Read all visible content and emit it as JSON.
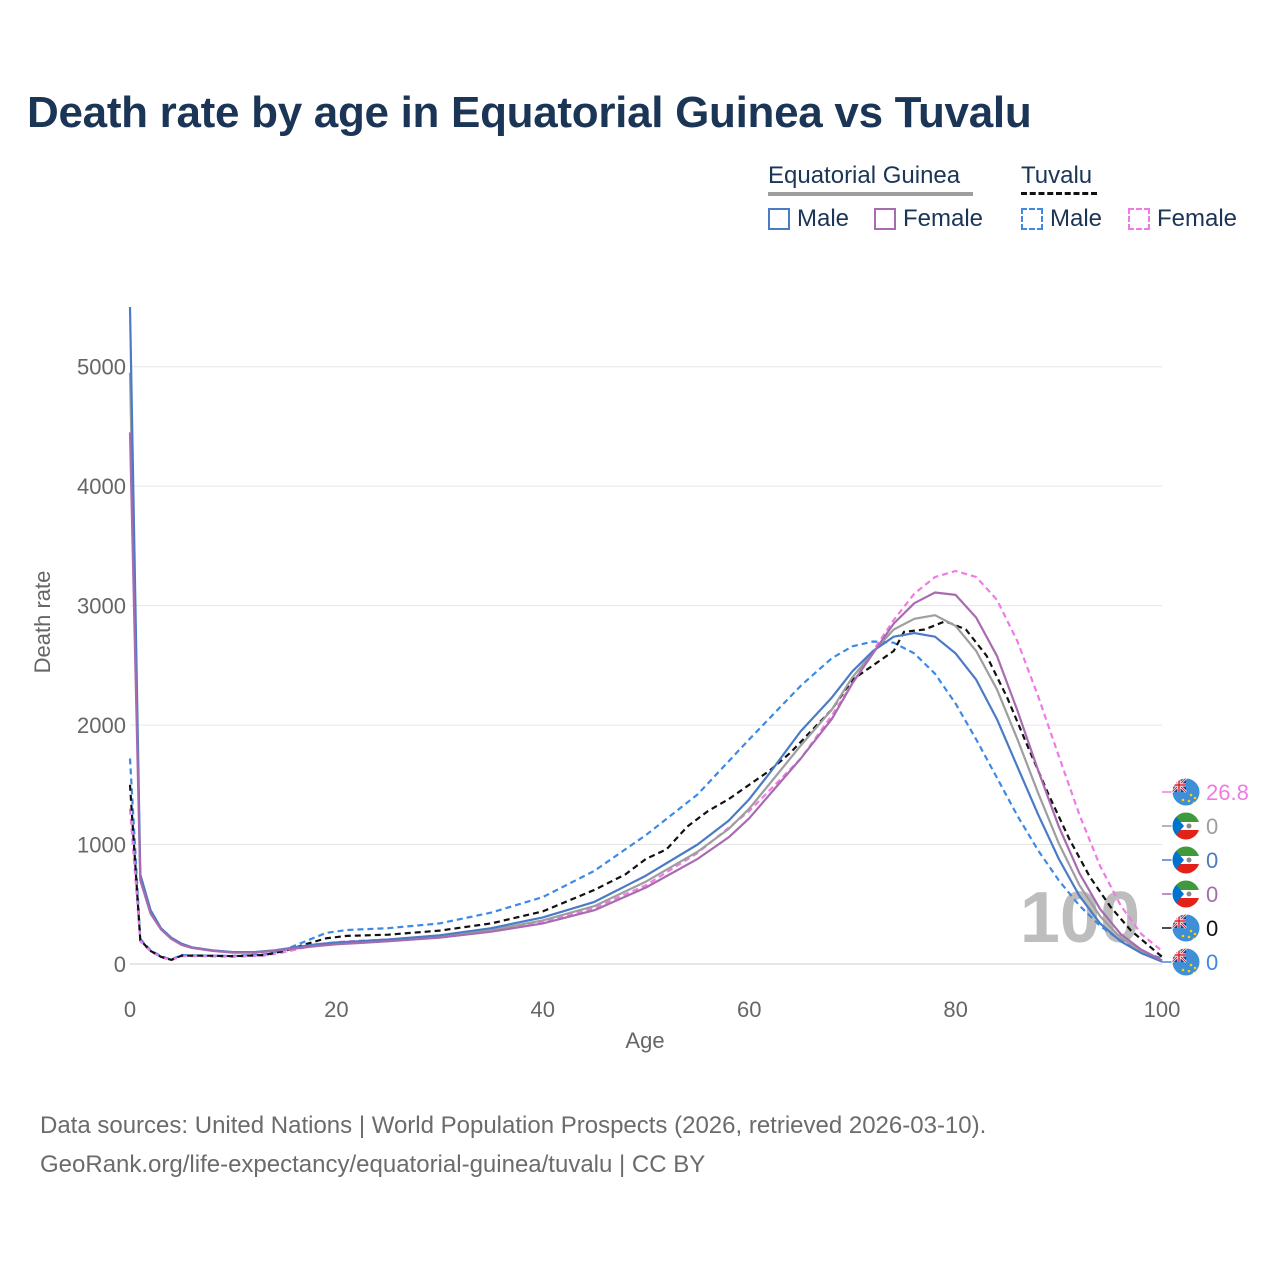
{
  "title": "Death rate by age in Equatorial Guinea vs Tuvalu",
  "legend": {
    "groups": [
      {
        "name": "Equatorial Guinea",
        "line_color": "#9e9e9e",
        "line_style": "solid",
        "items": [
          {
            "label": "Male",
            "color": "#4a7bc4",
            "style": "solid"
          },
          {
            "label": "Female",
            "color": "#a86bb0",
            "style": "solid"
          }
        ]
      },
      {
        "name": "Tuvalu",
        "line_color": "#111111",
        "line_style": "dashed",
        "items": [
          {
            "label": "Male",
            "color": "#3d8ae6",
            "style": "dashed"
          },
          {
            "label": "Female",
            "color": "#f07be6",
            "style": "dashed"
          }
        ]
      }
    ]
  },
  "chart_data": {
    "type": "line",
    "title": "Death rate by age in Equatorial Guinea vs Tuvalu",
    "xlabel": "Age",
    "ylabel": "Death rate",
    "xlim": [
      0,
      100
    ],
    "ylim": [
      0,
      5500
    ],
    "x_ticks": [
      "0",
      "20",
      "40",
      "60",
      "80",
      "100"
    ],
    "x_tick_values": [
      0,
      20,
      40,
      60,
      80,
      100
    ],
    "y_ticks": [
      "0",
      "1000",
      "2000",
      "3000",
      "4000",
      "5000"
    ],
    "y_tick_values": [
      0,
      1000,
      2000,
      3000,
      4000,
      5000
    ],
    "grid": true,
    "current_age_marker": "100",
    "series": [
      {
        "name": "Equatorial Guinea Male",
        "color": "#4a7bc4",
        "dash": "solid",
        "end_value": "0",
        "flag": "equatorial-guinea-flag",
        "points": [
          [
            0,
            5500
          ],
          [
            1,
            750
          ],
          [
            2,
            450
          ],
          [
            3,
            300
          ],
          [
            4,
            220
          ],
          [
            5,
            170
          ],
          [
            6,
            140
          ],
          [
            8,
            115
          ],
          [
            10,
            100
          ],
          [
            12,
            100
          ],
          [
            14,
            115
          ],
          [
            16,
            140
          ],
          [
            18,
            165
          ],
          [
            20,
            180
          ],
          [
            22,
            190
          ],
          [
            25,
            205
          ],
          [
            30,
            240
          ],
          [
            35,
            300
          ],
          [
            40,
            390
          ],
          [
            45,
            520
          ],
          [
            50,
            740
          ],
          [
            55,
            1000
          ],
          [
            58,
            1200
          ],
          [
            60,
            1380
          ],
          [
            62,
            1600
          ],
          [
            65,
            1950
          ],
          [
            68,
            2230
          ],
          [
            70,
            2450
          ],
          [
            72,
            2620
          ],
          [
            74,
            2740
          ],
          [
            76,
            2770
          ],
          [
            78,
            2740
          ],
          [
            80,
            2600
          ],
          [
            82,
            2380
          ],
          [
            84,
            2050
          ],
          [
            86,
            1650
          ],
          [
            88,
            1250
          ],
          [
            90,
            880
          ],
          [
            92,
            570
          ],
          [
            94,
            340
          ],
          [
            96,
            190
          ],
          [
            98,
            90
          ],
          [
            100,
            20
          ]
        ]
      },
      {
        "name": "Equatorial Guinea Female",
        "color": "#a86bb0",
        "dash": "solid",
        "end_value": "0",
        "flag": "equatorial-guinea-flag",
        "points": [
          [
            0,
            4450
          ],
          [
            1,
            700
          ],
          [
            2,
            420
          ],
          [
            3,
            290
          ],
          [
            4,
            210
          ],
          [
            5,
            160
          ],
          [
            6,
            135
          ],
          [
            8,
            110
          ],
          [
            10,
            95
          ],
          [
            12,
            95
          ],
          [
            14,
            110
          ],
          [
            16,
            130
          ],
          [
            18,
            150
          ],
          [
            20,
            165
          ],
          [
            22,
            175
          ],
          [
            25,
            190
          ],
          [
            30,
            220
          ],
          [
            35,
            270
          ],
          [
            40,
            340
          ],
          [
            45,
            450
          ],
          [
            50,
            640
          ],
          [
            55,
            880
          ],
          [
            58,
            1060
          ],
          [
            60,
            1220
          ],
          [
            62,
            1420
          ],
          [
            65,
            1720
          ],
          [
            68,
            2050
          ],
          [
            70,
            2350
          ],
          [
            72,
            2600
          ],
          [
            74,
            2850
          ],
          [
            76,
            3020
          ],
          [
            78,
            3110
          ],
          [
            80,
            3090
          ],
          [
            82,
            2900
          ],
          [
            84,
            2580
          ],
          [
            86,
            2120
          ],
          [
            88,
            1620
          ],
          [
            90,
            1150
          ],
          [
            92,
            760
          ],
          [
            94,
            460
          ],
          [
            96,
            250
          ],
          [
            98,
            120
          ],
          [
            100,
            30
          ]
        ]
      },
      {
        "name": "Equatorial Guinea Total",
        "color": "#9e9e9e",
        "dash": "solid",
        "end_value": "0",
        "flag": "equatorial-guinea-flag",
        "points": [
          [
            0,
            4950
          ],
          [
            1,
            720
          ],
          [
            2,
            435
          ],
          [
            3,
            295
          ],
          [
            4,
            215
          ],
          [
            5,
            165
          ],
          [
            6,
            138
          ],
          [
            8,
            112
          ],
          [
            10,
            98
          ],
          [
            12,
            98
          ],
          [
            14,
            112
          ],
          [
            16,
            135
          ],
          [
            18,
            158
          ],
          [
            20,
            172
          ],
          [
            22,
            182
          ],
          [
            25,
            198
          ],
          [
            30,
            230
          ],
          [
            35,
            285
          ],
          [
            40,
            365
          ],
          [
            45,
            485
          ],
          [
            50,
            690
          ],
          [
            55,
            940
          ],
          [
            58,
            1130
          ],
          [
            60,
            1300
          ],
          [
            62,
            1510
          ],
          [
            65,
            1830
          ],
          [
            68,
            2130
          ],
          [
            70,
            2400
          ],
          [
            72,
            2610
          ],
          [
            74,
            2800
          ],
          [
            76,
            2890
          ],
          [
            78,
            2920
          ],
          [
            80,
            2830
          ],
          [
            82,
            2620
          ],
          [
            84,
            2300
          ],
          [
            86,
            1880
          ],
          [
            88,
            1430
          ],
          [
            90,
            1010
          ],
          [
            92,
            660
          ],
          [
            94,
            400
          ],
          [
            96,
            220
          ],
          [
            98,
            105
          ],
          [
            100,
            25
          ]
        ]
      },
      {
        "name": "Tuvalu Total",
        "color": "#111111",
        "dash": "dashed",
        "end_value": "0",
        "flag": "tuvalu-flag",
        "points": [
          [
            0,
            1500
          ],
          [
            1,
            200
          ],
          [
            2,
            110
          ],
          [
            3,
            60
          ],
          [
            4,
            35
          ],
          [
            5,
            70
          ],
          [
            7,
            70
          ],
          [
            10,
            65
          ],
          [
            13,
            75
          ],
          [
            15,
            110
          ],
          [
            17,
            165
          ],
          [
            19,
            215
          ],
          [
            21,
            235
          ],
          [
            25,
            245
          ],
          [
            30,
            280
          ],
          [
            35,
            340
          ],
          [
            40,
            440
          ],
          [
            45,
            620
          ],
          [
            48,
            750
          ],
          [
            50,
            880
          ],
          [
            52,
            960
          ],
          [
            54,
            1150
          ],
          [
            56,
            1280
          ],
          [
            58,
            1380
          ],
          [
            60,
            1500
          ],
          [
            62,
            1620
          ],
          [
            64,
            1770
          ],
          [
            66,
            1950
          ],
          [
            68,
            2130
          ],
          [
            70,
            2380
          ],
          [
            72,
            2500
          ],
          [
            74,
            2620
          ],
          [
            75,
            2780
          ],
          [
            77,
            2800
          ],
          [
            79,
            2870
          ],
          [
            81,
            2800
          ],
          [
            83,
            2580
          ],
          [
            85,
            2230
          ],
          [
            87,
            1820
          ],
          [
            89,
            1420
          ],
          [
            91,
            1050
          ],
          [
            93,
            730
          ],
          [
            95,
            480
          ],
          [
            97,
            280
          ],
          [
            100,
            60
          ]
        ]
      },
      {
        "name": "Tuvalu Male",
        "color": "#3d8ae6",
        "dash": "dashed",
        "end_value": "0",
        "flag": "tuvalu-flag",
        "points": [
          [
            0,
            1720
          ],
          [
            1,
            210
          ],
          [
            2,
            115
          ],
          [
            3,
            65
          ],
          [
            4,
            38
          ],
          [
            5,
            75
          ],
          [
            7,
            70
          ],
          [
            10,
            68
          ],
          [
            13,
            80
          ],
          [
            15,
            120
          ],
          [
            17,
            190
          ],
          [
            19,
            260
          ],
          [
            21,
            285
          ],
          [
            25,
            300
          ],
          [
            30,
            340
          ],
          [
            35,
            430
          ],
          [
            40,
            560
          ],
          [
            45,
            780
          ],
          [
            50,
            1080
          ],
          [
            55,
            1420
          ],
          [
            60,
            1880
          ],
          [
            65,
            2330
          ],
          [
            68,
            2560
          ],
          [
            70,
            2660
          ],
          [
            72,
            2700
          ],
          [
            74,
            2690
          ],
          [
            76,
            2600
          ],
          [
            78,
            2430
          ],
          [
            80,
            2180
          ],
          [
            82,
            1880
          ],
          [
            84,
            1560
          ],
          [
            86,
            1240
          ],
          [
            88,
            950
          ],
          [
            90,
            700
          ],
          [
            92,
            490
          ],
          [
            94,
            320
          ],
          [
            96,
            195
          ],
          [
            98,
            105
          ],
          [
            100,
            45
          ]
        ]
      },
      {
        "name": "Tuvalu Female",
        "color": "#f07be6",
        "dash": "dashed",
        "end_value": "26.8",
        "flag": "tuvalu-flag",
        "points": [
          [
            0,
            1300
          ],
          [
            1,
            190
          ],
          [
            2,
            105
          ],
          [
            3,
            58
          ],
          [
            4,
            32
          ],
          [
            5,
            65
          ],
          [
            7,
            65
          ],
          [
            10,
            60
          ],
          [
            13,
            70
          ],
          [
            15,
            100
          ],
          [
            17,
            140
          ],
          [
            19,
            175
          ],
          [
            21,
            190
          ],
          [
            25,
            205
          ],
          [
            30,
            230
          ],
          [
            35,
            280
          ],
          [
            40,
            350
          ],
          [
            45,
            470
          ],
          [
            50,
            660
          ],
          [
            55,
            930
          ],
          [
            60,
            1280
          ],
          [
            65,
            1720
          ],
          [
            68,
            2080
          ],
          [
            70,
            2350
          ],
          [
            72,
            2620
          ],
          [
            74,
            2880
          ],
          [
            76,
            3100
          ],
          [
            78,
            3240
          ],
          [
            80,
            3290
          ],
          [
            82,
            3240
          ],
          [
            84,
            3050
          ],
          [
            86,
            2700
          ],
          [
            88,
            2240
          ],
          [
            90,
            1740
          ],
          [
            92,
            1250
          ],
          [
            94,
            820
          ],
          [
            96,
            490
          ],
          [
            98,
            250
          ],
          [
            100,
            110
          ]
        ]
      }
    ]
  },
  "footer": {
    "line1": "Data sources: United Nations | World Population Prospects (2026, retrieved 2026-03-10).",
    "line2": "GeoRank.org/life-expectancy/equatorial-guinea/tuvalu | CC BY"
  }
}
